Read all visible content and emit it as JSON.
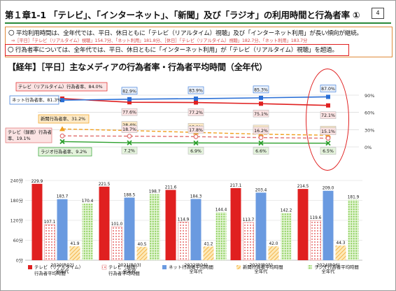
{
  "page": {
    "title": "第１章1-1 「テレビ」、「インターネット」、「新聞」及び「ラジオ」の利用時間と行為者率 ①",
    "page_number": "4",
    "bullet_1": "〇 平均利用時間は、全年代では、平日、休日ともに「テレビ（リアルタイム）視聴」及び「インターネット利用」が長い傾向が継続。",
    "sub_note": "⇒［平日］「テレビ（リアルタイム）視聴」154.7分、「ネット利用」181.8分、［休日］「テレビ（リアルタイム）視聴」182.7分、「ネット利用」183.7分",
    "bullet_2": "〇 行為者率については、全年代では、平日、休日ともに「インターネット利用」が「テレビ（リアルタイム）視聴」を超過。",
    "chart_heading": "【経年】［平日］主なメディアの行為者率・行為者平均時間（全年代）"
  },
  "chart_data": [
    {
      "type": "line",
      "categories": [
        "2020(R02)",
        "2021(R03)",
        "2022(R04)",
        "2023(R05)",
        "2024(R06)"
      ],
      "ylim": [
        0,
        90
      ],
      "y_ticks": [
        "90%",
        "60%",
        "30%",
        "0%"
      ],
      "series": [
        {
          "name": "テレビ（リアルタイム）行為者率",
          "start_label": "テレビ（リアルタイム）行為者率、84.0%",
          "values": [
            84.0,
            77.6,
            77.2,
            75.1,
            72.1
          ],
          "labels": [
            "",
            "77.6%",
            "77.2%",
            "75.1%",
            "72.1%"
          ],
          "color": "#e02020"
        },
        {
          "name": "ネット行為者率",
          "start_label": "ネット行為者率、81.3%",
          "values": [
            81.3,
            82.9,
            83.9,
            85.3,
            87.0
          ],
          "labels": [
            "",
            "82.9%",
            "83.9%",
            "85.3%",
            "87.0%"
          ],
          "color": "#2a6fd6"
        },
        {
          "name": "新聞行為者率",
          "start_label": "新聞行為者率、31.2%",
          "values": [
            31.2,
            28.4,
            25.2,
            22.1,
            20.3
          ],
          "labels": [
            "",
            "28.4%",
            "25.2%",
            "22.1%",
            "20.3%"
          ],
          "color": "#f0a020"
        },
        {
          "name": "テレビ（録画）行為者率",
          "start_label": [
            "テレビ（録画）行為者",
            "率、19.1%"
          ],
          "values": [
            19.1,
            18.7,
            17.8,
            16.2,
            15.1
          ],
          "labels": [
            "",
            "18.7%",
            "17.8%",
            "16.2%",
            "15.1%"
          ],
          "color": "#e07070"
        },
        {
          "name": "ラジオ行為者率",
          "start_label": "ラジオ行為者率、9.2%",
          "values": [
            9.2,
            7.2,
            6.9,
            6.6,
            6.5
          ],
          "labels": [
            "",
            "7.2%",
            "6.9%",
            "6.6%",
            "6.5%"
          ],
          "color": "#2ea02e"
        }
      ]
    },
    {
      "type": "bar",
      "categories": [
        "2020(R02)",
        "2021(R03)",
        "2022(R04)",
        "2023(R05)",
        "2024(R06)"
      ],
      "category_sublabel": "全年代",
      "ylim": [
        0,
        240
      ],
      "y_ticks": [
        "240分",
        "180分",
        "120分",
        "60分",
        "0分"
      ],
      "series": [
        {
          "name": "テレビ（リアルタイム）行為者平均時間",
          "legend": [
            "テレビ（リアルタイム）",
            "行為者平均時間"
          ],
          "values": [
            229.9,
            221.5,
            211.6,
            217.1,
            214.5
          ],
          "labels": [
            "229.9",
            "221.5",
            "211.6",
            "217.1",
            "214.5"
          ],
          "color": "#e02020"
        },
        {
          "name": "テレビ（録画）行為者平均時間",
          "legend": [
            "テレビ（録画）",
            "行為者平均時間"
          ],
          "values": [
            107.1,
            101.0,
            114.9,
            113.7,
            119.6
          ],
          "labels": [
            "107.1",
            "101.0",
            "114.9",
            "113.7",
            "119.6"
          ],
          "color": "#e07070"
        },
        {
          "name": "ネット行為者平均時間",
          "legend": [
            "ネット行為者平均時間"
          ],
          "values": [
            183.7,
            188.5,
            184.3,
            203.4,
            209.0
          ],
          "labels": [
            "183.7",
            "188.5",
            "184.3",
            "203.4",
            "209.0"
          ],
          "color": "#6a9ae0"
        },
        {
          "name": "新聞行為者平均時間",
          "legend": [
            "新聞行為者平均時間"
          ],
          "values": [
            41.9,
            40.5,
            41.2,
            42.0,
            44.3
          ],
          "labels": [
            "41.9",
            "40.5",
            "41.2",
            "42.0",
            "44.3"
          ],
          "color": "#f5b640"
        },
        {
          "name": "ラジオ行為者平均時間",
          "legend": [
            "ラジオ行為者平均時間"
          ],
          "values": [
            170.4,
            198.7,
            144.4,
            142.2,
            181.9
          ],
          "labels": [
            "170.4",
            "198.7",
            "144.4",
            "142.2",
            "181.9"
          ],
          "color": "#8cd05a"
        }
      ]
    }
  ]
}
